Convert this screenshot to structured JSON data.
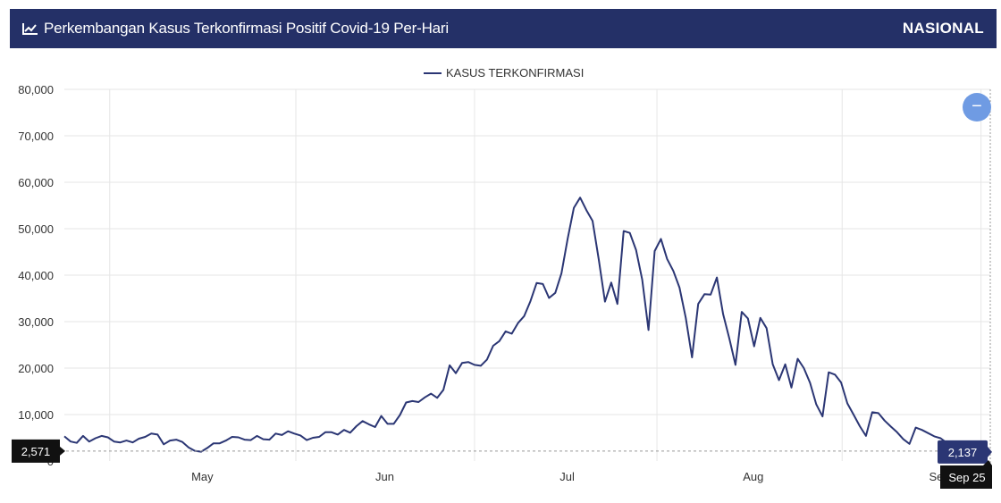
{
  "header": {
    "title": "Perkembangan Kasus Terkonfirmasi Positif Covid-19 Per-Hari",
    "region": "NASIONAL",
    "icon": "line-chart-icon"
  },
  "colors": {
    "header_bg": "#243067",
    "line": "#2b3674",
    "grid": "#e6e6e6",
    "zoom_button": "#6f9be3",
    "tooltip_dark": "#111111",
    "tooltip_value": "#2b3674"
  },
  "zoom": {
    "icon": "minus-icon",
    "label": "−"
  },
  "crosshair": {
    "left_value": "2,571",
    "right_value": "2,137",
    "date": "Sep 25"
  },
  "chart_data": {
    "type": "line",
    "title": "",
    "xlabel": "",
    "ylabel": "",
    "ylim": [
      0,
      80000
    ],
    "yticks": [
      "0",
      "10,000",
      "20,000",
      "30,000",
      "40,000",
      "50,000",
      "60,000",
      "70,000",
      "80,000"
    ],
    "xticks": [
      "May",
      "Jun",
      "Jul",
      "Aug",
      "Sep"
    ],
    "x_start": "Apr 2",
    "x_end": "Sep 25",
    "legend": "top-center",
    "grid": true,
    "series": [
      {
        "name": "KASUS TERKONFIRMASI",
        "values": [
          5300,
          4200,
          3900,
          5400,
          4200,
          4900,
          5400,
          5100,
          4200,
          4000,
          4400,
          4000,
          4800,
          5200,
          5900,
          5700,
          3600,
          4400,
          4600,
          4100,
          2900,
          2200,
          2000,
          2800,
          3800,
          3800,
          4400,
          5200,
          5100,
          4600,
          4500,
          5400,
          4700,
          4600,
          5900,
          5600,
          6400,
          5900,
          5500,
          4500,
          5000,
          5200,
          6200,
          6200,
          5700,
          6700,
          6100,
          7500,
          8600,
          7900,
          7300,
          9700,
          8000,
          8000,
          9900,
          12600,
          12900,
          12700,
          13700,
          14500,
          13600,
          15300,
          20600,
          18900,
          21100,
          21300,
          20700,
          20500,
          21800,
          24800,
          25800,
          27900,
          27400,
          29700,
          31200,
          34400,
          38300,
          38100,
          35100,
          36200,
          40400,
          47900,
          54500,
          56700,
          54000,
          51700,
          43300,
          34300,
          38400,
          33800,
          49500,
          49100,
          45400,
          39000,
          28200,
          45200,
          47800,
          43500,
          40900,
          37300,
          30800,
          22300,
          33800,
          35900,
          35800,
          39500,
          31700,
          26400,
          20700,
          32100,
          30700,
          24700,
          30800,
          28600,
          20800,
          17400,
          20800,
          15800,
          22000,
          20000,
          16800,
          12200,
          9600,
          19100,
          18600,
          16900,
          12400,
          10000,
          7500,
          5400,
          10500,
          10300,
          8700,
          7400,
          6200,
          4700,
          3700,
          7200,
          6700,
          6000,
          5300,
          4900,
          3900,
          2600,
          4000,
          3700,
          2600,
          2400,
          2200,
          2137
        ]
      }
    ]
  }
}
